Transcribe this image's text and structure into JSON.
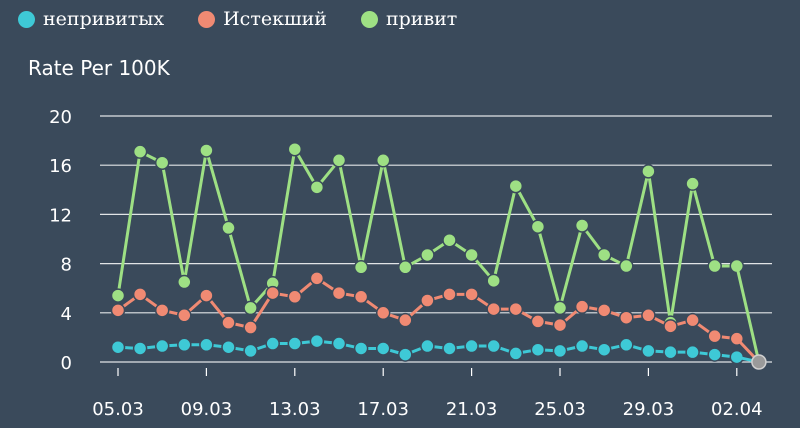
{
  "legend": [
    {
      "label": "непривитых",
      "color": "#3ec9d6"
    },
    {
      "label": "Истекший",
      "color": "#f08a73"
    },
    {
      "label": "привит",
      "color": "#9ee084"
    }
  ],
  "chart_data": {
    "type": "line",
    "ylabel": "Rate Per 100K",
    "ylim": [
      0,
      20
    ],
    "yticks": [
      0,
      4,
      8,
      12,
      16,
      20
    ],
    "grid": true,
    "legend_position": "top-left",
    "x": [
      "05.03",
      "06.03",
      "07.03",
      "08.03",
      "09.03",
      "10.03",
      "11.03",
      "12.03",
      "13.03",
      "14.03",
      "15.03",
      "16.03",
      "17.03",
      "18.03",
      "19.03",
      "20.03",
      "21.03",
      "22.03",
      "23.03",
      "24.03",
      "25.03",
      "26.03",
      "27.03",
      "28.03",
      "29.03",
      "30.03",
      "31.03",
      "01.04",
      "02.04",
      "03.04"
    ],
    "xticks": [
      "05.03",
      "09.03",
      "13.03",
      "17.03",
      "21.03",
      "25.03",
      "29.03",
      "02.04"
    ],
    "series": [
      {
        "name": "привит",
        "color": "#9ee084",
        "values": [
          5.4,
          17.1,
          16.2,
          6.5,
          17.2,
          10.9,
          4.4,
          6.4,
          17.3,
          14.2,
          16.4,
          7.7,
          16.4,
          7.7,
          8.7,
          9.9,
          8.7,
          6.6,
          14.3,
          11.0,
          4.4,
          11.1,
          8.7,
          7.8,
          15.5,
          3.2,
          14.5,
          7.8,
          7.8,
          null
        ]
      },
      {
        "name": "Истекший",
        "color": "#f08a73",
        "values": [
          4.2,
          5.5,
          4.2,
          3.8,
          5.4,
          3.2,
          2.8,
          5.6,
          5.3,
          6.8,
          5.6,
          5.3,
          4.0,
          3.4,
          5.0,
          5.5,
          5.5,
          4.3,
          4.3,
          3.3,
          3.0,
          4.5,
          4.2,
          3.6,
          3.8,
          2.9,
          3.4,
          2.1,
          1.9,
          null
        ]
      },
      {
        "name": "непривитых",
        "color": "#3ec9d6",
        "values": [
          1.2,
          1.1,
          1.3,
          1.4,
          1.4,
          1.2,
          0.9,
          1.5,
          1.5,
          1.7,
          1.5,
          1.1,
          1.1,
          0.6,
          1.3,
          1.1,
          1.3,
          1.3,
          0.7,
          1.0,
          0.9,
          1.3,
          1.0,
          1.4,
          0.9,
          0.8,
          0.8,
          0.6,
          0.4,
          null
        ]
      }
    ],
    "end_point": {
      "x": "03.04",
      "value": 0,
      "color": "#9a9a9a"
    }
  }
}
